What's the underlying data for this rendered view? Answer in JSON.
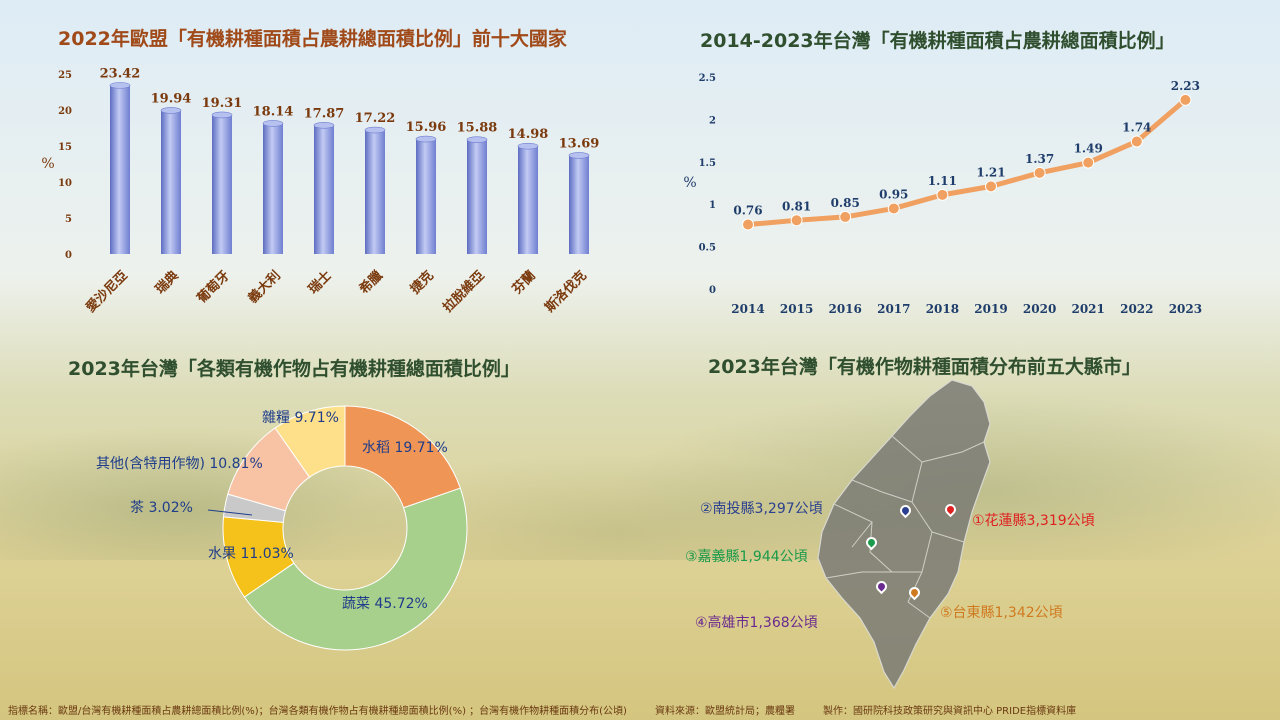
{
  "chart_data": [
    {
      "type": "bar",
      "title": "2022年歐盟「有機耕種面積占農耕總面積比例」前十大國家",
      "ylabel": "%",
      "ylim": [
        0,
        25
      ],
      "yticks": [
        0,
        5,
        10,
        15,
        20,
        25
      ],
      "categories": [
        "愛沙尼亞",
        "瑞典",
        "葡萄牙",
        "義大利",
        "瑞士",
        "希臘",
        "捷克",
        "拉脫維亞",
        "芬蘭",
        "斯洛伐克"
      ],
      "values": [
        23.42,
        19.94,
        19.31,
        18.14,
        17.87,
        17.22,
        15.96,
        15.88,
        14.98,
        13.69
      ],
      "value_labels": [
        "23.42",
        "19.94",
        "19.31",
        "18.14",
        "17.87",
        "17.22",
        "15.96",
        "15.88",
        "14.98",
        "13.69"
      ],
      "colors": {
        "bar": "#8f9ee0",
        "label": "#7b3a0e",
        "title": "#a04a1a"
      }
    },
    {
      "type": "line",
      "title": "2014-2023年台灣「有機耕種面積占農耕總面積比例」",
      "ylabel": "%",
      "ylim": [
        0,
        2.5
      ],
      "yticks": [
        "0",
        "0.5",
        "1",
        "1.5",
        "2",
        "2.5"
      ],
      "x": [
        "2014",
        "2015",
        "2016",
        "2017",
        "2018",
        "2019",
        "2020",
        "2021",
        "2022",
        "2023"
      ],
      "values": [
        0.76,
        0.81,
        0.85,
        0.95,
        1.11,
        1.21,
        1.37,
        1.49,
        1.74,
        2.23
      ],
      "value_labels": [
        "0.76",
        "0.81",
        "0.85",
        "0.95",
        "1.11",
        "1.21",
        "1.37",
        "1.49",
        "1.74",
        "2.23"
      ],
      "colors": {
        "line": "#f0a060",
        "label": "#1f3d6b",
        "title": "#2f4f2f"
      }
    },
    {
      "type": "pie",
      "donut": true,
      "title": "2023年台灣「各類有機作物占有機耕種總面積比例」",
      "slices": [
        {
          "label": "水稻 19.71%",
          "value": 19.71,
          "color": "#ef9556"
        },
        {
          "label": "蔬菜 45.72%",
          "value": 45.72,
          "color": "#a8d08d"
        },
        {
          "label": "水果 11.03%",
          "value": 11.03,
          "color": "#f4c21a"
        },
        {
          "label": "茶 3.02%",
          "value": 3.02,
          "color": "#c9c9c9"
        },
        {
          "label": "其他(含特用作物) 10.81%",
          "value": 10.81,
          "color": "#f7c3a4"
        },
        {
          "label": "雜糧 9.71%",
          "value": 9.71,
          "color": "#ffe08a"
        }
      ],
      "colors": {
        "label": "#1f3d8a",
        "title": "#2f4f2f"
      }
    }
  ],
  "map": {
    "title": "2023年台灣「有機作物耕種面積分布前五大縣市」",
    "markers": [
      {
        "rank": "①",
        "label": "①花蓮縣3,319公頃",
        "color": "#e02020"
      },
      {
        "rank": "②",
        "label": "②南投縣3,297公頃",
        "color": "#2b3f8f"
      },
      {
        "rank": "③",
        "label": "③嘉義縣1,944公頃",
        "color": "#1a9a4a"
      },
      {
        "rank": "④",
        "label": "④高雄市1,368公頃",
        "color": "#6b2a8f"
      },
      {
        "rank": "⑤",
        "label": "⑤台東縣1,342公頃",
        "color": "#d07a20"
      }
    ]
  },
  "footer": {
    "indicator": "指標名稱：歐盟/台灣有機耕種面積占農耕總面積比例(%)；台灣各類有機作物占有機耕種總面積比例(%) ；台灣有機作物耕種面積分布(公頃)",
    "source": "資料來源：歐盟統計局；農糧署",
    "producer": "製作：國研院科技政策研究與資訊中心 PRIDE指標資料庫"
  }
}
